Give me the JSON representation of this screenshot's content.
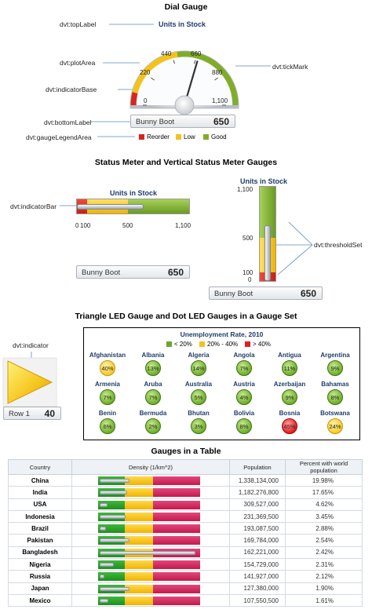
{
  "dial_section": {
    "title": "Dial Gauge",
    "callouts": {
      "top_label": "dvt:topLabel",
      "plot_area": "dvt:plotArea",
      "indicator_base": "dvt:indicatorBase",
      "bottom_label": "dvt:bottomLabel",
      "legend_area": "dvt:gaugeLegendArea",
      "tick_mark": "dvt:tickMark"
    },
    "gauge_title": "Units in Stock",
    "ticks": [
      "0",
      "220",
      "440",
      "660",
      "880",
      "1,100"
    ],
    "value": 650,
    "max": 1100,
    "label_name": "Bunny Boot",
    "label_value": "650",
    "legend": [
      {
        "label": "Reorder",
        "color": "#d9261c"
      },
      {
        "label": "Low",
        "color": "#f4c21b"
      },
      {
        "label": "Good",
        "color": "#7fad2a"
      }
    ]
  },
  "status_section": {
    "title": "Status Meter and Vertical Status Meter Gauges",
    "callouts": {
      "indicator_bar": "dvt:indicatorBar",
      "threshold_set": "dvt:thresholdSet"
    },
    "horizontal": {
      "title": "Units in Stock",
      "ticks": [
        "0",
        "100",
        "500",
        "1,100"
      ],
      "value": 650,
      "label_name": "Bunny Boot",
      "label_value": "650"
    },
    "vertical": {
      "title": "Units in Stock",
      "ticks": [
        "1,100",
        "500",
        "100",
        "0"
      ],
      "value": 650,
      "label_name": "Bunny Boot",
      "label_value": "650"
    }
  },
  "led_section": {
    "title": "Triangle LED Gauge and Dot LED Gauges in a Gauge Set",
    "callout_indicator": "dvt:indicator",
    "triangle_label_name": "Row 1",
    "triangle_label_value": "40",
    "set_title": "Unemployment Rate, 2010",
    "legend": [
      {
        "label": "< 20%",
        "color": "#6aa82a"
      },
      {
        "label": "20% - 40%",
        "color": "#f4c21b"
      },
      {
        "label": "> 40%",
        "color": "#e31e1e"
      }
    ],
    "countries": [
      {
        "name": "Afghanistan",
        "value": "40%",
        "status": "y"
      },
      {
        "name": "Albania",
        "value": "13%",
        "status": "g"
      },
      {
        "name": "Algeria",
        "value": "14%",
        "status": "g"
      },
      {
        "name": "Angola",
        "value": "7%",
        "status": "g"
      },
      {
        "name": "Antigua",
        "value": "11%",
        "status": "g"
      },
      {
        "name": "Argentina",
        "value": "9%",
        "status": "g"
      },
      {
        "name": "Armenia",
        "value": "7%",
        "status": "g"
      },
      {
        "name": "Aruba",
        "value": "7%",
        "status": "g"
      },
      {
        "name": "Australia",
        "value": "5%",
        "status": "g"
      },
      {
        "name": "Austria",
        "value": "4%",
        "status": "g"
      },
      {
        "name": "Azerbaijan",
        "value": "9%",
        "status": "g"
      },
      {
        "name": "Bahamas",
        "value": "8%",
        "status": "g"
      },
      {
        "name": "Benin",
        "value": "6%",
        "status": "g"
      },
      {
        "name": "Bermuda",
        "value": "2%",
        "status": "g"
      },
      {
        "name": "Bhutan",
        "value": "3%",
        "status": "g"
      },
      {
        "name": "Bolivia",
        "value": "8%",
        "status": "g"
      },
      {
        "name": "Bosnia",
        "value": "45%",
        "status": "r"
      },
      {
        "name": "Botswana",
        "value": "24%",
        "status": "y"
      }
    ]
  },
  "table_section": {
    "title": "Gauges in a Table",
    "headers": [
      "Country",
      "Density (1/km^2)",
      "Population",
      "Percent with world population"
    ],
    "rows": [
      {
        "country": "China",
        "density_fill": 0.3,
        "population": "1,338,134,000",
        "percent": "19.98%"
      },
      {
        "country": "India",
        "density_fill": 0.28,
        "population": "1,182,276,800",
        "percent": "17.65%"
      },
      {
        "country": "USA",
        "density_fill": 0.08,
        "population": "309,527,000",
        "percent": "4.62%"
      },
      {
        "country": "Indonesia",
        "density_fill": 0.26,
        "population": "231,369,500",
        "percent": "3.45%"
      },
      {
        "country": "Brazil",
        "density_fill": 0.06,
        "population": "193,087,500",
        "percent": "2.88%"
      },
      {
        "country": "Pakistan",
        "density_fill": 0.3,
        "population": "169,784,000",
        "percent": "2.54%"
      },
      {
        "country": "Bangladesh",
        "density_fill": 0.97,
        "population": "162,221,000",
        "percent": "2.42%"
      },
      {
        "country": "Nigeria",
        "density_fill": 0.14,
        "population": "154,729,000",
        "percent": "2.31%"
      },
      {
        "country": "Russia",
        "density_fill": 0.04,
        "population": "141,927,000",
        "percent": "2.12%"
      },
      {
        "country": "Japan",
        "density_fill": 0.3,
        "population": "127,380,000",
        "percent": "1.90%"
      },
      {
        "country": "Mexico",
        "density_fill": 0.09,
        "population": "107,550,500",
        "percent": "1.61%"
      }
    ]
  }
}
